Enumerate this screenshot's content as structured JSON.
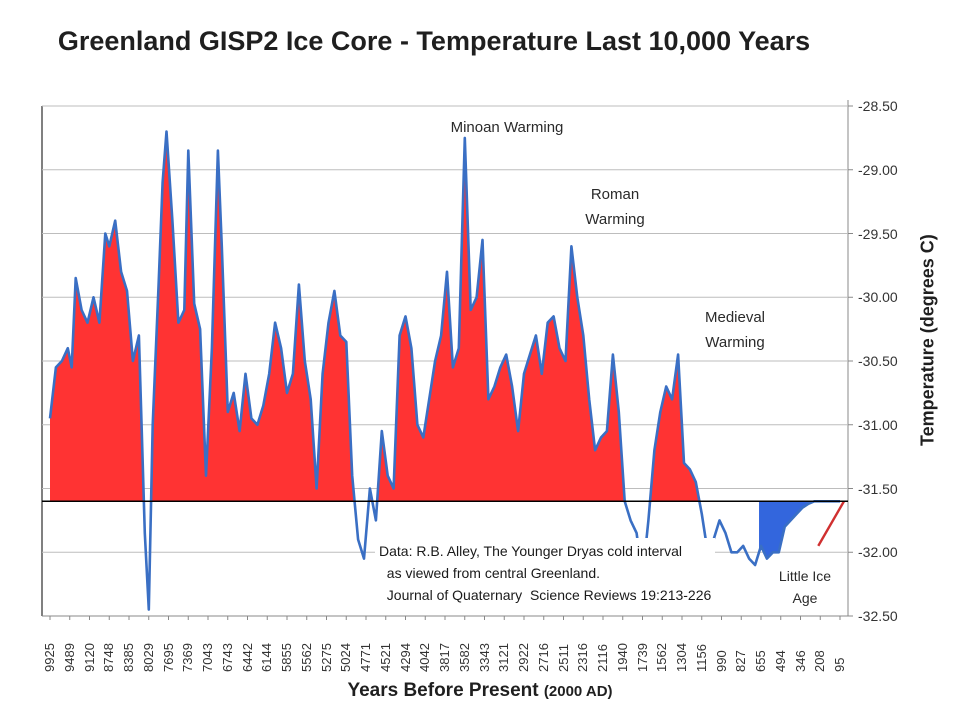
{
  "chart_data": {
    "type": "area",
    "title": "Greenland GISP2 Ice Core - Temperature  Last 10,000 Years",
    "xlabel": "Years Before Present",
    "xlabel_suffix": "(2000 AD)",
    "ylabel": "Temperature (degrees C)",
    "ylim": [
      -32.5,
      -28.5
    ],
    "yticks": [
      "-28.50",
      "-29.00",
      "-29.50",
      "-30.00",
      "-30.50",
      "-31.00",
      "-31.50",
      "-32.00",
      "-32.50"
    ],
    "ytick_values": [
      -28.5,
      -29.0,
      -29.5,
      -30.0,
      -30.5,
      -31.0,
      -31.5,
      -32.0,
      -32.5
    ],
    "baseline": -31.6,
    "xticks": [
      "9925",
      "9489",
      "9120",
      "8748",
      "8385",
      "8029",
      "7695",
      "7369",
      "7043",
      "6743",
      "6442",
      "6144",
      "5855",
      "5562",
      "5275",
      "5024",
      "4771",
      "4521",
      "4294",
      "4042",
      "3817",
      "3582",
      "3343",
      "3121",
      "2922",
      "2716",
      "2511",
      "2316",
      "2116",
      "1940",
      "1739",
      "1562",
      "1304",
      "1156",
      "990",
      "827",
      "655",
      "494",
      "346",
      "208",
      "95"
    ],
    "series": [
      {
        "x_index": [
          0,
          0.3,
          0.6,
          0.9,
          1.1,
          1.3,
          1.6,
          1.9,
          2.2,
          2.5,
          2.8,
          3.0,
          3.3,
          3.6,
          3.9,
          4.2,
          4.5,
          4.8,
          5.0,
          5.2,
          5.5,
          5.7,
          5.9,
          6.2,
          6.5,
          6.8,
          7.0,
          7.3,
          7.6,
          7.9,
          8.2,
          8.5,
          8.7,
          9.0,
          9.3,
          9.6,
          9.9,
          10.2,
          10.5,
          10.8,
          11.1,
          11.4,
          11.7,
          12.0,
          12.3,
          12.6,
          12.9,
          13.2,
          13.5,
          13.8,
          14.1,
          14.4,
          14.7,
          15.0,
          15.3,
          15.6,
          15.9,
          16.2,
          16.5,
          16.8,
          17.1,
          17.4,
          17.7,
          18.0,
          18.3,
          18.6,
          18.9,
          19.2,
          19.5,
          19.8,
          20.1,
          20.4,
          20.7,
          21.0,
          21.3,
          21.6,
          21.9,
          22.2,
          22.5,
          22.8,
          23.1,
          23.4,
          23.7,
          24.0,
          24.3,
          24.6,
          24.9,
          25.2,
          25.5,
          25.8,
          26.1,
          26.4,
          26.7,
          27.0,
          27.3,
          27.6,
          27.9,
          28.2,
          28.5,
          28.8,
          29.1,
          29.4,
          29.7,
          30.0,
          30.3,
          30.6,
          30.9,
          31.2,
          31.5,
          31.8,
          32.1,
          32.4,
          32.7,
          33.0,
          33.3,
          33.6,
          33.9,
          34.2,
          34.5,
          34.8,
          35.1,
          35.4,
          35.7,
          36.0,
          36.3,
          36.6,
          36.9,
          37.2,
          37.5,
          37.8,
          38.1,
          38.4,
          38.7,
          39.0,
          39.3,
          39.6,
          40.0
        ],
        "values": [
          -30.95,
          -30.55,
          -30.5,
          -30.4,
          -30.55,
          -29.85,
          -30.1,
          -30.2,
          -30.0,
          -30.2,
          -29.5,
          -29.6,
          -29.4,
          -29.8,
          -29.95,
          -30.5,
          -30.3,
          -31.85,
          -32.45,
          -31.0,
          -29.9,
          -29.1,
          -28.7,
          -29.4,
          -30.2,
          -30.1,
          -28.85,
          -30.05,
          -30.25,
          -31.4,
          -30.4,
          -28.85,
          -29.6,
          -30.9,
          -30.75,
          -31.05,
          -30.6,
          -30.95,
          -31.0,
          -30.85,
          -30.6,
          -30.2,
          -30.4,
          -30.75,
          -30.6,
          -29.9,
          -30.5,
          -30.8,
          -31.5,
          -30.6,
          -30.2,
          -29.95,
          -30.3,
          -30.35,
          -31.4,
          -31.9,
          -32.05,
          -31.5,
          -31.75,
          -31.05,
          -31.4,
          -31.5,
          -30.3,
          -30.15,
          -30.4,
          -31.0,
          -31.1,
          -30.8,
          -30.5,
          -30.3,
          -29.8,
          -30.55,
          -30.4,
          -28.75,
          -30.1,
          -30.0,
          -29.55,
          -30.8,
          -30.7,
          -30.55,
          -30.45,
          -30.7,
          -31.05,
          -30.6,
          -30.45,
          -30.3,
          -30.6,
          -30.2,
          -30.15,
          -30.4,
          -30.5,
          -29.6,
          -30.0,
          -30.3,
          -30.8,
          -31.2,
          -31.1,
          -31.05,
          -30.45,
          -30.9,
          -31.6,
          -31.75,
          -31.85,
          -32.2,
          -31.75,
          -31.2,
          -30.9,
          -30.7,
          -30.8,
          -30.45,
          -31.3,
          -31.35,
          -31.45,
          -31.7,
          -32.0,
          -31.9,
          -31.75,
          -31.85,
          -32.0,
          -32.0,
          -31.95,
          -32.05,
          -32.1,
          -31.95,
          -32.05,
          -32.0,
          -32.0,
          -31.8,
          -31.75,
          -31.7,
          -31.65,
          -31.62,
          -31.6,
          -31.6,
          -31.6,
          -31.6,
          -31.6
        ],
        "fill_above": "#ff3333",
        "fill_below": "#3366dd",
        "line": "#3a6fc4"
      }
    ],
    "annotations": [
      {
        "text": "Minoan Warming"
      },
      {
        "text": "Roman\nWarming"
      },
      {
        "text": "Medieval\nWarming"
      },
      {
        "text": "Little Ice\nAge"
      }
    ],
    "source_note": [
      "Data: R.B. Alley,  The Younger Dryas cold interval",
      "  as viewed from central Greenland.",
      "  Journal of Quaternary  Science Reviews 19:213-226"
    ],
    "grid": true,
    "colors": {
      "above": "#ff3333",
      "below": "#3366dd",
      "line": "#3a6fc4",
      "baseline": "#000000"
    }
  }
}
